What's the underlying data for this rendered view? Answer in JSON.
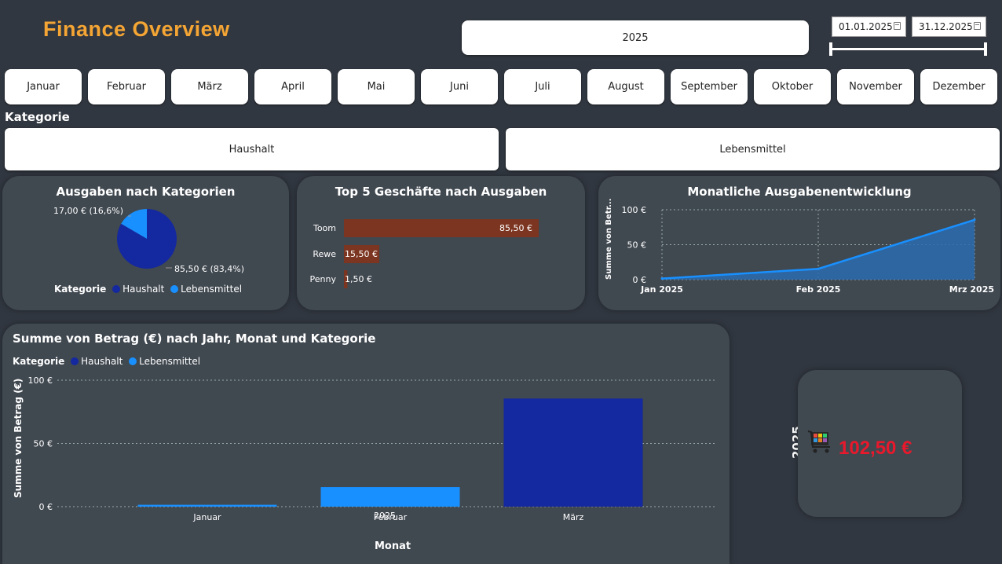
{
  "header": {
    "title": "Finance Overview"
  },
  "filters": {
    "year": "2025",
    "date_from": "01.01.2025",
    "date_to": "31.12.2025",
    "months": [
      "Januar",
      "Februar",
      "März",
      "April",
      "Mai",
      "Juni",
      "Juli",
      "August",
      "September",
      "Oktober",
      "November",
      "Dezember"
    ],
    "category_label": "Kategorie",
    "categories": [
      "Haushalt",
      "Lebensmittel"
    ]
  },
  "colors": {
    "haushalt": "#1428a0",
    "lebensmittel": "#1890ff",
    "bar": "#7b3520",
    "accent": "#f4a534",
    "kpi": "#e8192c"
  },
  "pie_card": {
    "title": "Ausgaben nach Kategorien",
    "label_small": "17,00 € (16,6%)",
    "label_large": "85,50 € (83,4%)",
    "legend_title": "Kategorie",
    "legend": [
      "Haushalt",
      "Lebensmittel"
    ]
  },
  "top5_card": {
    "title": "Top 5 Geschäfte nach Ausgaben"
  },
  "trend_card": {
    "title": "Monatliche Ausgabenentwicklung",
    "ylabel": "Summe von Betr...",
    "yticks": [
      "100 €",
      "50 €",
      "0 €"
    ],
    "xticks": [
      "Jan 2025",
      "Feb 2025",
      "Mrz 2025"
    ]
  },
  "bar_card": {
    "title": "Summe von Betrag (€) nach Jahr, Monat und Kategorie",
    "legend_title": "Kategorie",
    "legend": [
      "Haushalt",
      "Lebensmittel"
    ],
    "ylabel": "Summe von Betrag (€)",
    "yticks": [
      "100 €",
      "50 €",
      "0 €"
    ],
    "xticks": [
      "Januar",
      "Februar",
      "März"
    ],
    "xsub": "2025",
    "xlabel": "Monat"
  },
  "kpi": {
    "year_label": "2025",
    "value": "102,50 €",
    "icon": "shopping-cart-icon"
  },
  "chart_data": [
    {
      "type": "pie",
      "title": "Ausgaben nach Kategorien",
      "categories": [
        "Haushalt",
        "Lebensmittel"
      ],
      "values": [
        85.5,
        17.0
      ],
      "percentages": [
        83.4,
        16.6
      ],
      "legend": "bottom"
    },
    {
      "type": "bar",
      "orientation": "horizontal",
      "title": "Top 5 Geschäfte nach Ausgaben",
      "categories": [
        "Toom",
        "Rewe",
        "Penny"
      ],
      "values": [
        85.5,
        15.5,
        1.5
      ],
      "data_labels": [
        "85,50 €",
        "15,50 €",
        "1,50 €"
      ]
    },
    {
      "type": "area",
      "title": "Monatliche Ausgabenentwicklung",
      "x": [
        "Jan 2025",
        "Feb 2025",
        "Mrz 2025"
      ],
      "values": [
        1.5,
        15.5,
        85.5
      ],
      "ylim": [
        0,
        100
      ],
      "ylabel": "Summe von Betr...",
      "grid": true
    },
    {
      "type": "bar",
      "title": "Summe von Betrag (€) nach Jahr, Monat und Kategorie",
      "categories": [
        "Januar",
        "Februar",
        "März"
      ],
      "series": [
        {
          "name": "Haushalt",
          "values": [
            0,
            0,
            85.5
          ]
        },
        {
          "name": "Lebensmittel",
          "values": [
            1.5,
            15.5,
            0
          ]
        }
      ],
      "ylim": [
        0,
        100
      ],
      "xlabel": "Monat",
      "ylabel": "Summe von Betrag (€)",
      "legend": "top-left",
      "grid": true
    }
  ]
}
